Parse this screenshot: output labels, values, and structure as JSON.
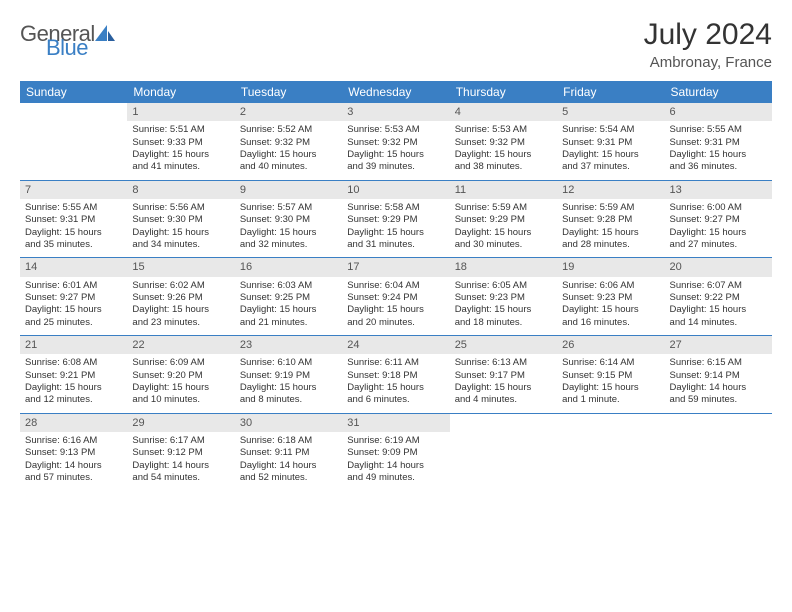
{
  "brand": {
    "part1": "General",
    "part2": "Blue"
  },
  "title": "July 2024",
  "location": "Ambronay, France",
  "header_color": "#3a7fc4",
  "daynum_bg": "#e8e8e8",
  "weekdays": [
    "Sunday",
    "Monday",
    "Tuesday",
    "Wednesday",
    "Thursday",
    "Friday",
    "Saturday"
  ],
  "weeks": [
    [
      {
        "n": "",
        "lines": []
      },
      {
        "n": "1",
        "lines": [
          "Sunrise: 5:51 AM",
          "Sunset: 9:33 PM",
          "Daylight: 15 hours",
          "and 41 minutes."
        ]
      },
      {
        "n": "2",
        "lines": [
          "Sunrise: 5:52 AM",
          "Sunset: 9:32 PM",
          "Daylight: 15 hours",
          "and 40 minutes."
        ]
      },
      {
        "n": "3",
        "lines": [
          "Sunrise: 5:53 AM",
          "Sunset: 9:32 PM",
          "Daylight: 15 hours",
          "and 39 minutes."
        ]
      },
      {
        "n": "4",
        "lines": [
          "Sunrise: 5:53 AM",
          "Sunset: 9:32 PM",
          "Daylight: 15 hours",
          "and 38 minutes."
        ]
      },
      {
        "n": "5",
        "lines": [
          "Sunrise: 5:54 AM",
          "Sunset: 9:31 PM",
          "Daylight: 15 hours",
          "and 37 minutes."
        ]
      },
      {
        "n": "6",
        "lines": [
          "Sunrise: 5:55 AM",
          "Sunset: 9:31 PM",
          "Daylight: 15 hours",
          "and 36 minutes."
        ]
      }
    ],
    [
      {
        "n": "7",
        "lines": [
          "Sunrise: 5:55 AM",
          "Sunset: 9:31 PM",
          "Daylight: 15 hours",
          "and 35 minutes."
        ]
      },
      {
        "n": "8",
        "lines": [
          "Sunrise: 5:56 AM",
          "Sunset: 9:30 PM",
          "Daylight: 15 hours",
          "and 34 minutes."
        ]
      },
      {
        "n": "9",
        "lines": [
          "Sunrise: 5:57 AM",
          "Sunset: 9:30 PM",
          "Daylight: 15 hours",
          "and 32 minutes."
        ]
      },
      {
        "n": "10",
        "lines": [
          "Sunrise: 5:58 AM",
          "Sunset: 9:29 PM",
          "Daylight: 15 hours",
          "and 31 minutes."
        ]
      },
      {
        "n": "11",
        "lines": [
          "Sunrise: 5:59 AM",
          "Sunset: 9:29 PM",
          "Daylight: 15 hours",
          "and 30 minutes."
        ]
      },
      {
        "n": "12",
        "lines": [
          "Sunrise: 5:59 AM",
          "Sunset: 9:28 PM",
          "Daylight: 15 hours",
          "and 28 minutes."
        ]
      },
      {
        "n": "13",
        "lines": [
          "Sunrise: 6:00 AM",
          "Sunset: 9:27 PM",
          "Daylight: 15 hours",
          "and 27 minutes."
        ]
      }
    ],
    [
      {
        "n": "14",
        "lines": [
          "Sunrise: 6:01 AM",
          "Sunset: 9:27 PM",
          "Daylight: 15 hours",
          "and 25 minutes."
        ]
      },
      {
        "n": "15",
        "lines": [
          "Sunrise: 6:02 AM",
          "Sunset: 9:26 PM",
          "Daylight: 15 hours",
          "and 23 minutes."
        ]
      },
      {
        "n": "16",
        "lines": [
          "Sunrise: 6:03 AM",
          "Sunset: 9:25 PM",
          "Daylight: 15 hours",
          "and 21 minutes."
        ]
      },
      {
        "n": "17",
        "lines": [
          "Sunrise: 6:04 AM",
          "Sunset: 9:24 PM",
          "Daylight: 15 hours",
          "and 20 minutes."
        ]
      },
      {
        "n": "18",
        "lines": [
          "Sunrise: 6:05 AM",
          "Sunset: 9:23 PM",
          "Daylight: 15 hours",
          "and 18 minutes."
        ]
      },
      {
        "n": "19",
        "lines": [
          "Sunrise: 6:06 AM",
          "Sunset: 9:23 PM",
          "Daylight: 15 hours",
          "and 16 minutes."
        ]
      },
      {
        "n": "20",
        "lines": [
          "Sunrise: 6:07 AM",
          "Sunset: 9:22 PM",
          "Daylight: 15 hours",
          "and 14 minutes."
        ]
      }
    ],
    [
      {
        "n": "21",
        "lines": [
          "Sunrise: 6:08 AM",
          "Sunset: 9:21 PM",
          "Daylight: 15 hours",
          "and 12 minutes."
        ]
      },
      {
        "n": "22",
        "lines": [
          "Sunrise: 6:09 AM",
          "Sunset: 9:20 PM",
          "Daylight: 15 hours",
          "and 10 minutes."
        ]
      },
      {
        "n": "23",
        "lines": [
          "Sunrise: 6:10 AM",
          "Sunset: 9:19 PM",
          "Daylight: 15 hours",
          "and 8 minutes."
        ]
      },
      {
        "n": "24",
        "lines": [
          "Sunrise: 6:11 AM",
          "Sunset: 9:18 PM",
          "Daylight: 15 hours",
          "and 6 minutes."
        ]
      },
      {
        "n": "25",
        "lines": [
          "Sunrise: 6:13 AM",
          "Sunset: 9:17 PM",
          "Daylight: 15 hours",
          "and 4 minutes."
        ]
      },
      {
        "n": "26",
        "lines": [
          "Sunrise: 6:14 AM",
          "Sunset: 9:15 PM",
          "Daylight: 15 hours",
          "and 1 minute."
        ]
      },
      {
        "n": "27",
        "lines": [
          "Sunrise: 6:15 AM",
          "Sunset: 9:14 PM",
          "Daylight: 14 hours",
          "and 59 minutes."
        ]
      }
    ],
    [
      {
        "n": "28",
        "lines": [
          "Sunrise: 6:16 AM",
          "Sunset: 9:13 PM",
          "Daylight: 14 hours",
          "and 57 minutes."
        ]
      },
      {
        "n": "29",
        "lines": [
          "Sunrise: 6:17 AM",
          "Sunset: 9:12 PM",
          "Daylight: 14 hours",
          "and 54 minutes."
        ]
      },
      {
        "n": "30",
        "lines": [
          "Sunrise: 6:18 AM",
          "Sunset: 9:11 PM",
          "Daylight: 14 hours",
          "and 52 minutes."
        ]
      },
      {
        "n": "31",
        "lines": [
          "Sunrise: 6:19 AM",
          "Sunset: 9:09 PM",
          "Daylight: 14 hours",
          "and 49 minutes."
        ]
      },
      {
        "n": "",
        "lines": []
      },
      {
        "n": "",
        "lines": []
      },
      {
        "n": "",
        "lines": []
      }
    ]
  ]
}
